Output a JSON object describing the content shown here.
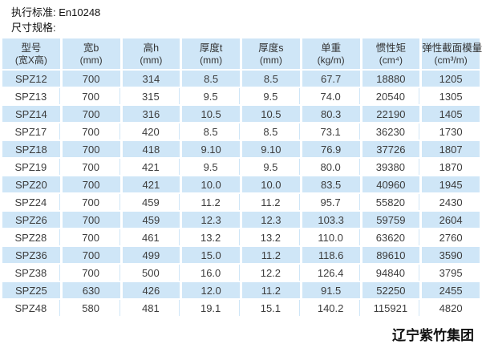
{
  "page": {
    "standard_line": "执行标准: En10248",
    "spec_line": "尺寸规格:",
    "footer": "辽宁紫竹集团"
  },
  "colors": {
    "row_highlight": "#cfe6f7",
    "cell_text": "#3c3c3c"
  },
  "table": {
    "columns": [
      {
        "title": "型号",
        "unit": "(宽X高)"
      },
      {
        "title": "宽b",
        "unit": "(mm)"
      },
      {
        "title": "高h",
        "unit": "(mm)"
      },
      {
        "title": "厚度t",
        "unit": "(mm)"
      },
      {
        "title": "厚度s",
        "unit": "(mm)"
      },
      {
        "title": "单重",
        "unit": "(kg/m)"
      },
      {
        "title": "惯性矩",
        "unit": "(cm⁴)"
      },
      {
        "title": "弹性截面模量",
        "unit": "(cm³/m)"
      }
    ],
    "rows": [
      [
        "SPZ12",
        "700",
        "314",
        "8.5",
        "8.5",
        "67.7",
        "18880",
        "1205"
      ],
      [
        "SPZ13",
        "700",
        "315",
        "9.5",
        "9.5",
        "74.0",
        "20540",
        "1305"
      ],
      [
        "SPZ14",
        "700",
        "316",
        "10.5",
        "10.5",
        "80.3",
        "22190",
        "1405"
      ],
      [
        "SPZ17",
        "700",
        "420",
        "8.5",
        "8.5",
        "73.1",
        "36230",
        "1730"
      ],
      [
        "SPZ18",
        "700",
        "418",
        "9.10",
        "9.10",
        "76.9",
        "37726",
        "1807"
      ],
      [
        "SPZ19",
        "700",
        "421",
        "9.5",
        "9.5",
        "80.0",
        "39380",
        "1870"
      ],
      [
        "SPZ20",
        "700",
        "421",
        "10.0",
        "10.0",
        "83.5",
        "40960",
        "1945"
      ],
      [
        "SPZ24",
        "700",
        "459",
        "11.2",
        "11.2",
        "95.7",
        "55820",
        "2430"
      ],
      [
        "SPZ26",
        "700",
        "459",
        "12.3",
        "12.3",
        "103.3",
        "59759",
        "2604"
      ],
      [
        "SPZ28",
        "700",
        "461",
        "13.2",
        "13.2",
        "110.0",
        "63620",
        "2760"
      ],
      [
        "SPZ36",
        "700",
        "499",
        "15.0",
        "11.2",
        "118.6",
        "89610",
        "3590"
      ],
      [
        "SPZ38",
        "700",
        "500",
        "16.0",
        "12.2",
        "126.4",
        "94840",
        "3795"
      ],
      [
        "SPZ25",
        "630",
        "426",
        "12.0",
        "11.2",
        "91.5",
        "52250",
        "2455"
      ],
      [
        "SPZ48",
        "580",
        "481",
        "19.1",
        "15.1",
        "140.2",
        "115921",
        "4820"
      ]
    ]
  }
}
